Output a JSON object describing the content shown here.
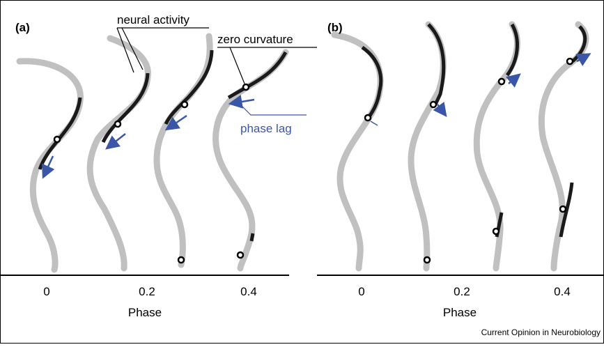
{
  "panels": [
    {
      "label": "(a)",
      "ticks": [
        "0",
        "0.2",
        "0.4"
      ],
      "axis_title": "Phase",
      "annotations": {
        "neural_activity": "neural activity",
        "zero_curvature": "zero curvature",
        "phase_lag": "phase lag"
      }
    },
    {
      "label": "(b)",
      "ticks": [
        "0",
        "0.2",
        "0.4"
      ],
      "axis_title": "Phase"
    }
  ],
  "credit": "Current Opinion in Neurobiology"
}
